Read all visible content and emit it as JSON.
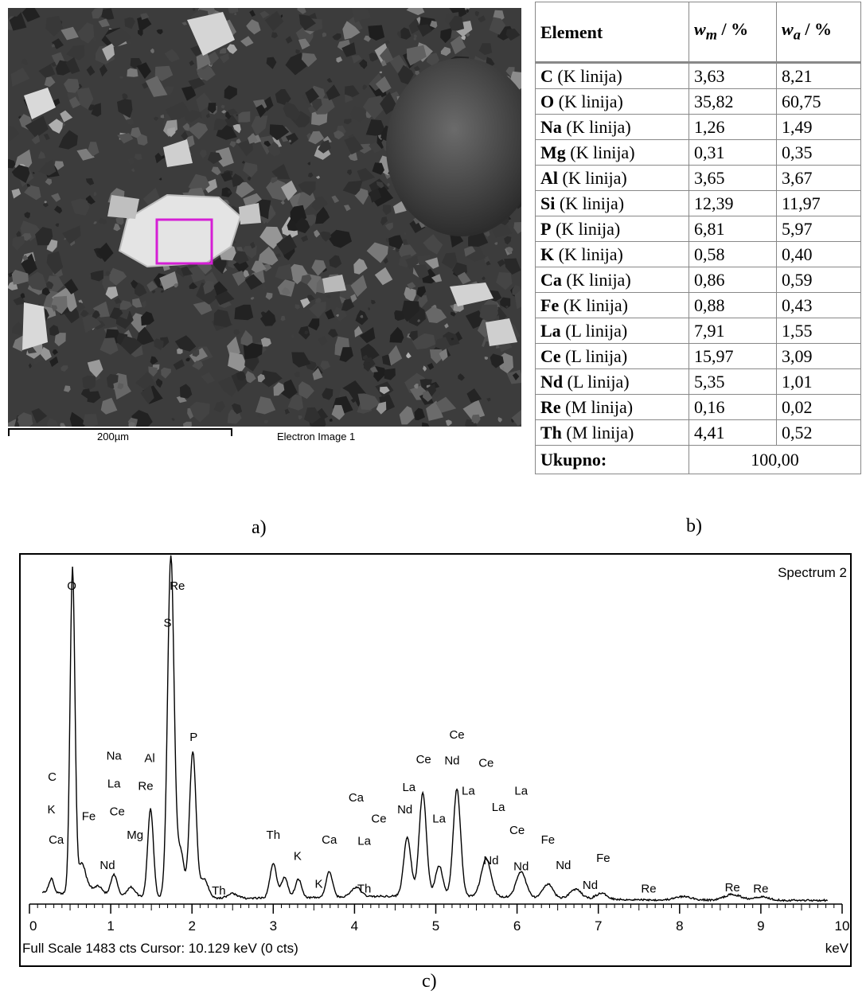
{
  "panel_a": {
    "scale_label": "200µm",
    "image_label": "Electron Image 1",
    "caption": "a)",
    "roi_color": "#d51fd5"
  },
  "panel_b": {
    "caption": "b)",
    "headers": {
      "element": "Element",
      "wm": "w",
      "wm_sub": "m",
      "wa": "w",
      "wa_sub": "a",
      "unit": " / %"
    },
    "rows": [
      {
        "symbol": "C",
        "line": " (K linija)",
        "wm": "3,63",
        "wa": "8,21"
      },
      {
        "symbol": "O",
        "line": " (K linija)",
        "wm": "35,82",
        "wa": "60,75"
      },
      {
        "symbol": "Na",
        "line": " (K linija)",
        "wm": "1,26",
        "wa": "1,49"
      },
      {
        "symbol": "Mg",
        "line": " (K linija)",
        "wm": "0,31",
        "wa": "0,35"
      },
      {
        "symbol": "Al",
        "line": " (K linija)",
        "wm": "3,65",
        "wa": "3,67"
      },
      {
        "symbol": "Si",
        "line": " (K linija)",
        "wm": "12,39",
        "wa": "11,97"
      },
      {
        "symbol": "P",
        "line": " (K linija)",
        "wm": "6,81",
        "wa": "5,97"
      },
      {
        "symbol": "K",
        "line": " (K linija)",
        "wm": "0,58",
        "wa": "0,40"
      },
      {
        "symbol": "Ca",
        "line": " (K linija)",
        "wm": "0,86",
        "wa": "0,59"
      },
      {
        "symbol": "Fe",
        "line": " (K linija)",
        "wm": "0,88",
        "wa": "0,43"
      },
      {
        "symbol": "La",
        "line": " (L linija)",
        "wm": "7,91",
        "wa": "1,55"
      },
      {
        "symbol": "Ce",
        "line": " (L linija)",
        "wm": "15,97",
        "wa": "3,09"
      },
      {
        "symbol": "Nd",
        "line": " (L linija)",
        "wm": "5,35",
        "wa": "1,01"
      },
      {
        "symbol": "Re",
        "line": " (M linija)",
        "wm": "0,16",
        "wa": "0,02"
      },
      {
        "symbol": "Th",
        "line": " (M linija)",
        "wm": "4,41",
        "wa": "0,52"
      }
    ],
    "total_label": "Ukupno:",
    "total_value": "100,00"
  },
  "panel_c": {
    "caption": "c)",
    "spectrum_name": "Spectrum 2",
    "status": "Full Scale 1483 cts  Cursor: 10.129 keV (0 cts)",
    "x_unit": "keV",
    "xlim": [
      0,
      10
    ],
    "x_tick_labels": [
      "0",
      "1",
      "2",
      "3",
      "4",
      "5",
      "6",
      "7",
      "8",
      "9",
      "10"
    ],
    "full_scale_cts": 1483,
    "peaks": [
      {
        "kev": 0.27,
        "cts": 60,
        "width": 0.03
      },
      {
        "kev": 0.53,
        "cts": 1400,
        "width": 0.03
      },
      {
        "kev": 0.64,
        "cts": 120,
        "width": 0.04
      },
      {
        "kev": 0.71,
        "cts": 40,
        "width": 0.05
      },
      {
        "kev": 0.85,
        "cts": 40,
        "width": 0.05
      },
      {
        "kev": 1.04,
        "cts": 90,
        "width": 0.04
      },
      {
        "kev": 1.25,
        "cts": 40,
        "width": 0.05
      },
      {
        "kev": 1.49,
        "cts": 380,
        "width": 0.035
      },
      {
        "kev": 1.74,
        "cts": 1470,
        "width": 0.04
      },
      {
        "kev": 1.86,
        "cts": 200,
        "width": 0.04
      },
      {
        "kev": 2.01,
        "cts": 630,
        "width": 0.04
      },
      {
        "kev": 2.15,
        "cts": 80,
        "width": 0.05
      },
      {
        "kev": 2.5,
        "cts": 20,
        "width": 0.06
      },
      {
        "kev": 3.0,
        "cts": 150,
        "width": 0.04
      },
      {
        "kev": 3.14,
        "cts": 90,
        "width": 0.04
      },
      {
        "kev": 3.31,
        "cts": 80,
        "width": 0.04
      },
      {
        "kev": 3.69,
        "cts": 110,
        "width": 0.04
      },
      {
        "kev": 4.02,
        "cts": 40,
        "width": 0.06
      },
      {
        "kev": 4.65,
        "cts": 250,
        "width": 0.045
      },
      {
        "kev": 4.84,
        "cts": 440,
        "width": 0.045
      },
      {
        "kev": 5.04,
        "cts": 130,
        "width": 0.045
      },
      {
        "kev": 5.26,
        "cts": 460,
        "width": 0.045
      },
      {
        "kev": 5.62,
        "cts": 160,
        "width": 0.06
      },
      {
        "kev": 6.05,
        "cts": 110,
        "width": 0.06
      },
      {
        "kev": 6.38,
        "cts": 60,
        "width": 0.06
      },
      {
        "kev": 6.72,
        "cts": 40,
        "width": 0.07
      },
      {
        "kev": 7.04,
        "cts": 25,
        "width": 0.07
      },
      {
        "kev": 8.05,
        "cts": 15,
        "width": 0.1
      },
      {
        "kev": 8.65,
        "cts": 25,
        "width": 0.1
      },
      {
        "kev": 9.0,
        "cts": 15,
        "width": 0.1
      }
    ],
    "labels": [
      {
        "text": "O",
        "kev": 0.52,
        "cts": 1340
      },
      {
        "text": "Re",
        "kev": 1.82,
        "cts": 1340
      },
      {
        "text": "S",
        "kev": 1.7,
        "cts": 1180
      },
      {
        "text": "P",
        "kev": 2.02,
        "cts": 690
      },
      {
        "text": "C",
        "kev": 0.28,
        "cts": 520
      },
      {
        "text": "K",
        "kev": 0.27,
        "cts": 380
      },
      {
        "text": "Ca",
        "kev": 0.33,
        "cts": 250
      },
      {
        "text": "Fe",
        "kev": 0.73,
        "cts": 350
      },
      {
        "text": "Na",
        "kev": 1.04,
        "cts": 610
      },
      {
        "text": "La",
        "kev": 1.04,
        "cts": 490
      },
      {
        "text": "Ce",
        "kev": 1.08,
        "cts": 370
      },
      {
        "text": "Mg",
        "kev": 1.3,
        "cts": 270
      },
      {
        "text": "Nd",
        "kev": 0.96,
        "cts": 140
      },
      {
        "text": "Al",
        "kev": 1.48,
        "cts": 600
      },
      {
        "text": "Re",
        "kev": 1.43,
        "cts": 480
      },
      {
        "text": "Th",
        "kev": 2.33,
        "cts": 30
      },
      {
        "text": "Th",
        "kev": 3.0,
        "cts": 270
      },
      {
        "text": "K",
        "kev": 3.3,
        "cts": 180
      },
      {
        "text": "K",
        "kev": 3.56,
        "cts": 60
      },
      {
        "text": "Ca",
        "kev": 3.69,
        "cts": 250
      },
      {
        "text": "Th",
        "kev": 4.12,
        "cts": 40
      },
      {
        "text": "La",
        "kev": 4.12,
        "cts": 245
      },
      {
        "text": "Ca",
        "kev": 4.02,
        "cts": 430
      },
      {
        "text": "Ce",
        "kev": 4.3,
        "cts": 340
      },
      {
        "text": "Nd",
        "kev": 4.62,
        "cts": 380
      },
      {
        "text": "La",
        "kev": 4.67,
        "cts": 475
      },
      {
        "text": "Ce",
        "kev": 4.85,
        "cts": 595
      },
      {
        "text": "Nd",
        "kev": 5.2,
        "cts": 590
      },
      {
        "text": "Ce",
        "kev": 5.26,
        "cts": 700
      },
      {
        "text": "La",
        "kev": 5.04,
        "cts": 340
      },
      {
        "text": "Ce",
        "kev": 5.62,
        "cts": 580
      },
      {
        "text": "La",
        "kev": 5.4,
        "cts": 460
      },
      {
        "text": "La",
        "kev": 5.77,
        "cts": 390
      },
      {
        "text": "La",
        "kev": 6.05,
        "cts": 460
      },
      {
        "text": "Ce",
        "kev": 6.0,
        "cts": 290
      },
      {
        "text": "Nd",
        "kev": 5.68,
        "cts": 160
      },
      {
        "text": "Nd",
        "kev": 6.05,
        "cts": 135
      },
      {
        "text": "Fe",
        "kev": 6.38,
        "cts": 250
      },
      {
        "text": "Nd",
        "kev": 6.57,
        "cts": 140
      },
      {
        "text": "Nd",
        "kev": 6.9,
        "cts": 55
      },
      {
        "text": "Fe",
        "kev": 7.06,
        "cts": 170
      },
      {
        "text": "Re",
        "kev": 7.62,
        "cts": 40
      },
      {
        "text": "Re",
        "kev": 8.65,
        "cts": 45
      },
      {
        "text": "Re",
        "kev": 9.0,
        "cts": 40
      }
    ]
  }
}
